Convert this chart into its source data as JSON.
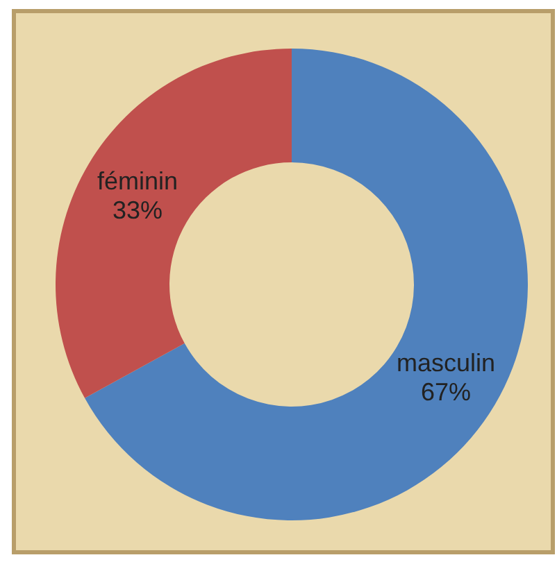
{
  "chart_data": {
    "type": "donut",
    "categories": [
      "masculin",
      "féminin"
    ],
    "values": [
      67,
      33
    ],
    "colors": [
      "#4f81bd",
      "#c0504d"
    ],
    "value_labels": [
      "67%",
      "33%"
    ]
  }
}
